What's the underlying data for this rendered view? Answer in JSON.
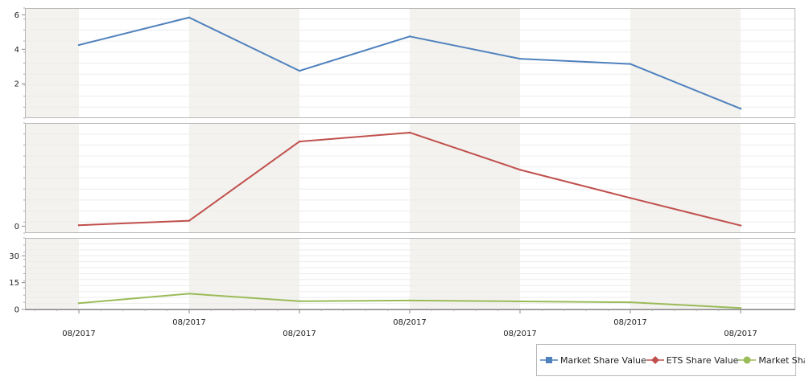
{
  "chart_data": {
    "type": "line",
    "categories": [
      "08/2017",
      "08/2017",
      "08/2017",
      "08/2017",
      "08/2017",
      "08/2017",
      "08/2017"
    ],
    "panes": [
      {
        "series": [
          {
            "name": "Market Share Value",
            "color": "#4f81bd",
            "marker": "square",
            "values": [
              4.25,
              5.85,
              2.75,
              4.75,
              3.45,
              3.15,
              0.55
            ]
          }
        ],
        "ylim": [
          0,
          6.4
        ],
        "yticks": [
          2,
          4,
          6
        ],
        "yticklabels": [
          "2",
          "4",
          "6"
        ]
      },
      {
        "series": [
          {
            "name": "ETS Share Value",
            "color": "#c0504d",
            "marker": "diamond",
            "values": [
              0.7,
              4.0,
              61.5,
              68.0,
              41.0,
              20.5,
              0.5
            ]
          }
        ],
        "ylim": [
          -5,
          75
        ],
        "yticks": [
          0
        ],
        "yticklabels": [
          "0"
        ]
      },
      {
        "series": [
          {
            "name": "Market Share",
            "color": "#9bbb59",
            "marker": "circle",
            "values": [
              3.5,
              8.8,
              4.6,
              5.0,
              4.5,
              4.0,
              0.8
            ]
          }
        ],
        "ylim": [
          0,
          40
        ],
        "yticks": [
          0,
          15,
          30
        ],
        "yticklabels": [
          "0",
          "15",
          "30"
        ]
      }
    ],
    "legend_position": "bottom-right",
    "grid": true
  }
}
